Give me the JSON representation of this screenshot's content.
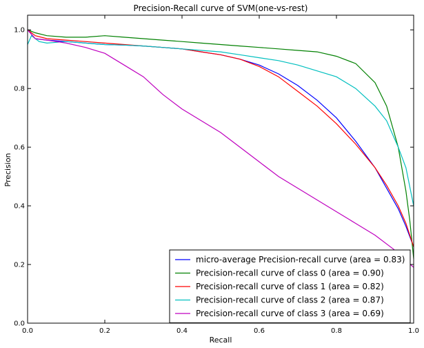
{
  "chart_data": {
    "type": "line",
    "title": "Precision-Recall curve of SVM(one-vs-rest)",
    "xlabel": "Recall",
    "ylabel": "Precision",
    "xlim": [
      0.0,
      1.0
    ],
    "ylim": [
      0.0,
      1.05
    ],
    "x_ticks": [
      "0.0",
      "0.2",
      "0.4",
      "0.6",
      "0.8",
      "1.0"
    ],
    "y_ticks": [
      "0.0",
      "0.2",
      "0.4",
      "0.6",
      "0.8",
      "1.0"
    ],
    "grid": false,
    "legend_position": "lower-right",
    "series": [
      {
        "name": "micro-average Precision-recall curve (area = 0.83)",
        "color": "#0000ff",
        "x": [
          0.0,
          0.02,
          0.05,
          0.1,
          0.15,
          0.2,
          0.25,
          0.3,
          0.35,
          0.4,
          0.45,
          0.5,
          0.55,
          0.6,
          0.65,
          0.7,
          0.75,
          0.8,
          0.85,
          0.9,
          0.93,
          0.96,
          0.98,
          1.0
        ],
        "y": [
          1.0,
          0.97,
          0.965,
          0.96,
          0.955,
          0.95,
          0.948,
          0.945,
          0.94,
          0.935,
          0.925,
          0.915,
          0.9,
          0.88,
          0.85,
          0.81,
          0.76,
          0.7,
          0.62,
          0.53,
          0.46,
          0.39,
          0.33,
          0.26
        ]
      },
      {
        "name": "Precision-recall curve of class 0 (area = 0.90)",
        "color": "#008000",
        "x": [
          0.0,
          0.02,
          0.05,
          0.1,
          0.15,
          0.2,
          0.25,
          0.3,
          0.35,
          0.4,
          0.45,
          0.5,
          0.55,
          0.6,
          0.65,
          0.7,
          0.75,
          0.8,
          0.85,
          0.9,
          0.93,
          0.96,
          0.98,
          0.99,
          1.0
        ],
        "y": [
          1.0,
          0.99,
          0.98,
          0.975,
          0.975,
          0.98,
          0.975,
          0.97,
          0.965,
          0.96,
          0.955,
          0.95,
          0.945,
          0.94,
          0.935,
          0.93,
          0.925,
          0.91,
          0.885,
          0.82,
          0.74,
          0.6,
          0.45,
          0.35,
          0.22
        ]
      },
      {
        "name": "Precision-recall curve of class 1 (area = 0.82)",
        "color": "#ff0000",
        "x": [
          0.0,
          0.02,
          0.05,
          0.1,
          0.15,
          0.2,
          0.25,
          0.3,
          0.35,
          0.4,
          0.45,
          0.5,
          0.55,
          0.6,
          0.65,
          0.7,
          0.75,
          0.8,
          0.85,
          0.9,
          0.93,
          0.96,
          0.98,
          1.0
        ],
        "y": [
          1.0,
          0.98,
          0.97,
          0.965,
          0.96,
          0.955,
          0.95,
          0.945,
          0.94,
          0.935,
          0.925,
          0.915,
          0.9,
          0.875,
          0.84,
          0.79,
          0.74,
          0.68,
          0.61,
          0.53,
          0.47,
          0.4,
          0.34,
          0.26
        ]
      },
      {
        "name": "Precision-recall curve of class 2 (area = 0.87)",
        "color": "#00bfbf",
        "x": [
          0.0,
          0.01,
          0.03,
          0.05,
          0.1,
          0.15,
          0.2,
          0.25,
          0.3,
          0.35,
          0.4,
          0.45,
          0.5,
          0.55,
          0.6,
          0.65,
          0.7,
          0.75,
          0.8,
          0.85,
          0.9,
          0.93,
          0.96,
          0.98,
          1.0
        ],
        "y": [
          0.95,
          0.98,
          0.96,
          0.955,
          0.96,
          0.955,
          0.95,
          0.948,
          0.945,
          0.94,
          0.935,
          0.93,
          0.925,
          0.915,
          0.905,
          0.895,
          0.88,
          0.86,
          0.84,
          0.8,
          0.74,
          0.69,
          0.6,
          0.53,
          0.4
        ]
      },
      {
        "name": "Precision-recall curve of class 3 (area = 0.69)",
        "color": "#bf00bf",
        "x": [
          0.0,
          0.02,
          0.05,
          0.1,
          0.15,
          0.2,
          0.25,
          0.3,
          0.35,
          0.4,
          0.45,
          0.5,
          0.55,
          0.6,
          0.65,
          0.7,
          0.75,
          0.8,
          0.85,
          0.9,
          0.95,
          1.0
        ],
        "y": [
          1.0,
          0.97,
          0.965,
          0.955,
          0.94,
          0.92,
          0.88,
          0.84,
          0.78,
          0.73,
          0.69,
          0.65,
          0.6,
          0.55,
          0.5,
          0.46,
          0.42,
          0.38,
          0.34,
          0.3,
          0.25,
          0.19
        ]
      }
    ]
  }
}
